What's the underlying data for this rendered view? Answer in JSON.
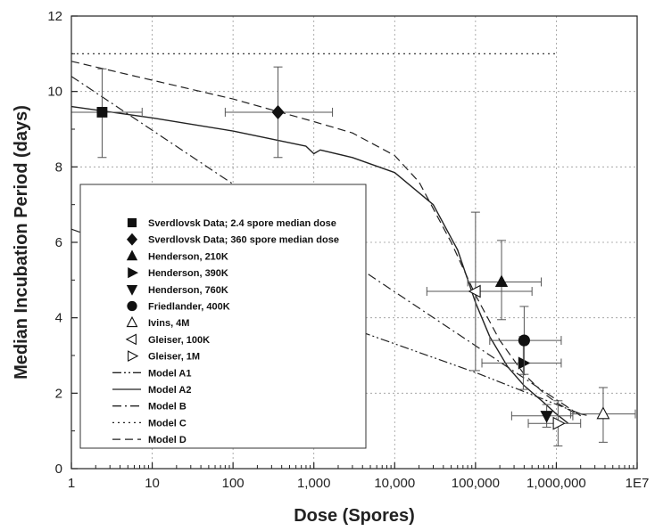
{
  "chart_data": {
    "type": "scatter",
    "xlabel": "Dose (Spores)",
    "ylabel": "Median Incubation Period (days)",
    "xscale": "log",
    "xlim": [
      1,
      10000000
    ],
    "ylim": [
      0,
      12
    ],
    "x_ticks": [
      {
        "value": 1,
        "label": "1"
      },
      {
        "value": 10,
        "label": "10"
      },
      {
        "value": 100,
        "label": "100"
      },
      {
        "value": 1000,
        "label": "1,000"
      },
      {
        "value": 10000,
        "label": "10,000"
      },
      {
        "value": 100000,
        "label": "100,000"
      },
      {
        "value": 1000000,
        "label": "1,000,000"
      },
      {
        "value": 10000000,
        "label": "1E7"
      }
    ],
    "y_ticks": [
      {
        "value": 0,
        "label": "0"
      },
      {
        "value": 2,
        "label": "2"
      },
      {
        "value": 4,
        "label": "4"
      },
      {
        "value": 6,
        "label": "6"
      },
      {
        "value": 8,
        "label": "8"
      },
      {
        "value": 10,
        "label": "10"
      },
      {
        "value": 12,
        "label": "12"
      }
    ],
    "grid": true,
    "legend_position": "lower-left",
    "points": [
      {
        "name": "Sverdlovsk Data; 2.4 spore median dose",
        "marker": "square",
        "x": 2.4,
        "y": 9.45,
        "xerr": [
          1.0,
          7.5
        ],
        "yerr": [
          8.25,
          10.6
        ]
      },
      {
        "name": "Sverdlovsk Data; 360 spore median dose",
        "marker": "diamond",
        "x": 360,
        "y": 9.45,
        "xerr": [
          80,
          1700
        ],
        "yerr": [
          8.25,
          10.65
        ]
      },
      {
        "name": "Henderson, 210K",
        "marker": "triangle-up",
        "x": 210000,
        "y": 4.95,
        "xerr": [
          80000,
          650000
        ],
        "yerr": [
          3.95,
          6.05
        ]
      },
      {
        "name": "Henderson, 390K",
        "marker": "triangle-right",
        "x": 390000,
        "y": 2.8,
        "xerr": [
          120000,
          1150000
        ],
        "yerr": [
          2.1,
          3.5
        ]
      },
      {
        "name": "Henderson, 760K",
        "marker": "triangle-down",
        "x": 760000,
        "y": 1.4,
        "xerr": [
          280000,
          1600000
        ],
        "yerr": [
          1.1,
          1.7
        ]
      },
      {
        "name": "Friedlander, 400K",
        "marker": "circle",
        "x": 400000,
        "y": 3.4,
        "xerr": [
          150000,
          1150000
        ],
        "yerr": [
          2.5,
          4.3
        ]
      },
      {
        "name": "Ivins, 4M",
        "marker": "triangle-up-open",
        "x": 3800000,
        "y": 1.45,
        "xerr": [
          1500000,
          9500000
        ],
        "yerr": [
          0.7,
          2.15
        ]
      },
      {
        "name": "Gleiser, 100K",
        "marker": "triangle-left-open",
        "x": 100000,
        "y": 4.7,
        "xerr": [
          25000,
          500000
        ],
        "yerr": [
          2.6,
          6.8
        ]
      },
      {
        "name": "Gleiser, 1M",
        "marker": "triangle-right-open",
        "x": 1050000,
        "y": 1.2,
        "xerr": [
          450000,
          2000000
        ],
        "yerr": [
          0.6,
          1.8
        ]
      }
    ],
    "series": [
      {
        "name": "Model A1",
        "style": "dash-dot-dot",
        "x": [
          1,
          100000,
          2000000
        ],
        "y": [
          6.35,
          2.55,
          1.45
        ]
      },
      {
        "name": "Model A2",
        "style": "solid",
        "x": [
          1,
          10,
          100,
          800,
          1000,
          1200,
          3000,
          10000,
          30000,
          60000,
          100000,
          150000,
          250000,
          400000,
          700000,
          1000000,
          1400000
        ],
        "y": [
          9.6,
          9.3,
          8.95,
          8.55,
          8.35,
          8.45,
          8.25,
          7.85,
          7.0,
          5.8,
          4.4,
          3.5,
          2.7,
          2.2,
          1.75,
          1.45,
          1.2
        ]
      },
      {
        "name": "Model B",
        "style": "dash-dot",
        "x": [
          1,
          2000000
        ],
        "y": [
          10.4,
          1.4
        ]
      },
      {
        "name": "Model C",
        "style": "dotted",
        "x": [
          1,
          1000000
        ],
        "y": [
          11.0,
          11.0
        ]
      },
      {
        "name": "Model D",
        "style": "dashed",
        "x": [
          1,
          10,
          100,
          1000,
          3000,
          10000,
          20000,
          50000,
          100000,
          200000,
          400000,
          700000,
          1000000,
          1600000,
          2500000
        ],
        "y": [
          10.8,
          10.3,
          9.8,
          9.2,
          8.9,
          8.3,
          7.6,
          6.0,
          4.6,
          3.4,
          2.5,
          2.0,
          1.75,
          1.5,
          1.4
        ]
      }
    ],
    "legend": [
      {
        "label": "Sverdlovsk Data; 2.4 spore median dose",
        "symbol": "square"
      },
      {
        "label": "Sverdlovsk Data; 360 spore median dose",
        "symbol": "diamond"
      },
      {
        "label": "Henderson, 210K",
        "symbol": "triangle-up"
      },
      {
        "label": "Henderson, 390K",
        "symbol": "triangle-right"
      },
      {
        "label": "Henderson, 760K",
        "symbol": "triangle-down"
      },
      {
        "label": "Friedlander, 400K",
        "symbol": "circle"
      },
      {
        "label": "Ivins, 4M",
        "symbol": "triangle-up-open"
      },
      {
        "label": "Gleiser, 100K",
        "symbol": "triangle-left-open"
      },
      {
        "label": "Gleiser, 1M",
        "symbol": "triangle-right-open"
      },
      {
        "label": "Model A1",
        "symbol": "dash-dot-dot"
      },
      {
        "label": "Model A2",
        "symbol": "solid"
      },
      {
        "label": "Model B",
        "symbol": "dash-dot"
      },
      {
        "label": "Model C",
        "symbol": "dotted"
      },
      {
        "label": "Model D",
        "symbol": "dashed"
      }
    ]
  }
}
